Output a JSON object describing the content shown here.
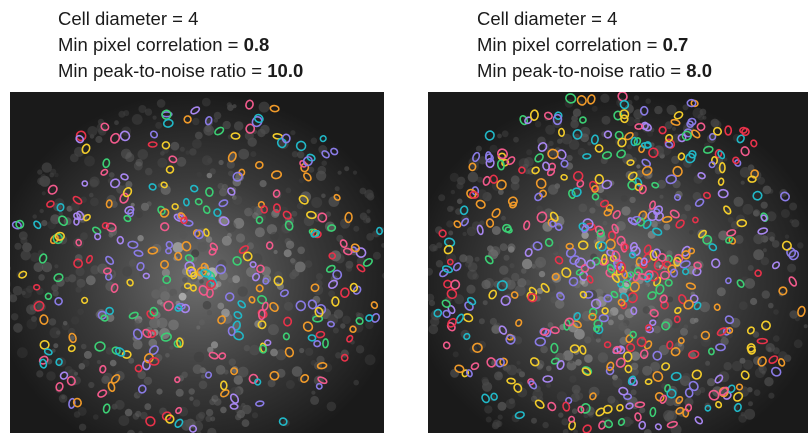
{
  "panels": [
    {
      "caption": {
        "diameter_label": "Cell diameter = ",
        "diameter_value": "4",
        "correlation_label": "Min pixel correlation = ",
        "correlation_value": "0.8",
        "pnr_label": "Min peak-to-noise ratio = ",
        "pnr_value": "10.0"
      },
      "image": {
        "description_icon": "calcium-imaging-field-of-view",
        "roi_count": 300,
        "seed": 11
      }
    },
    {
      "caption": {
        "diameter_label": "Cell diameter = ",
        "diameter_value": "4",
        "correlation_label": "Min pixel correlation = ",
        "correlation_value": "0.7",
        "pnr_label": "Min peak-to-noise ratio = ",
        "pnr_value": "8.0"
      },
      "image": {
        "description_icon": "calcium-imaging-field-of-view",
        "roi_count": 480,
        "seed": 29
      }
    }
  ],
  "colors": {
    "background": "#161616",
    "roi_palette": [
      "#e8324a",
      "#f25a8c",
      "#f2cc2b",
      "#3ccf74",
      "#8a7be6",
      "#a886f0",
      "#21b8c7",
      "#f09a2a"
    ]
  }
}
